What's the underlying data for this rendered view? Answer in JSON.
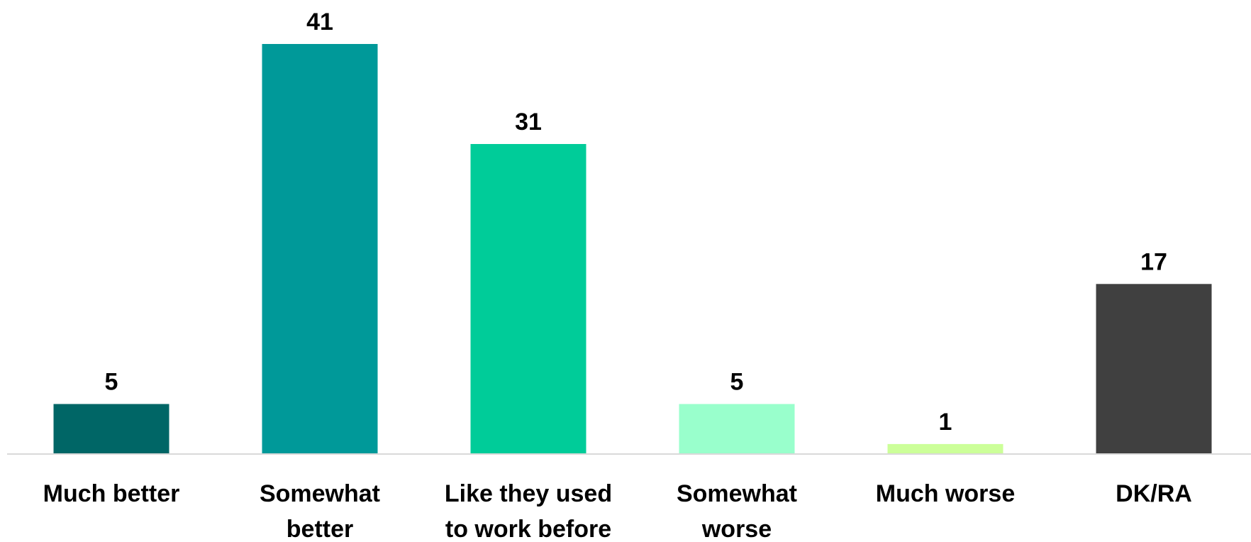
{
  "chart_data": {
    "type": "bar",
    "categories": [
      [
        "Much better"
      ],
      [
        "Somewhat",
        "better"
      ],
      [
        "Like they used",
        "to work before"
      ],
      [
        "Somewhat",
        "worse"
      ],
      [
        "Much worse"
      ],
      [
        "DK/RA"
      ]
    ],
    "values": [
      5,
      41,
      31,
      5,
      1,
      17
    ],
    "colors": [
      "#006666",
      "#009999",
      "#00cc99",
      "#99ffcc",
      "#ccff99",
      "#404040"
    ],
    "ylim": [
      0,
      41
    ],
    "grid": false,
    "legend": "none",
    "title": "",
    "xlabel": "",
    "ylabel": ""
  }
}
